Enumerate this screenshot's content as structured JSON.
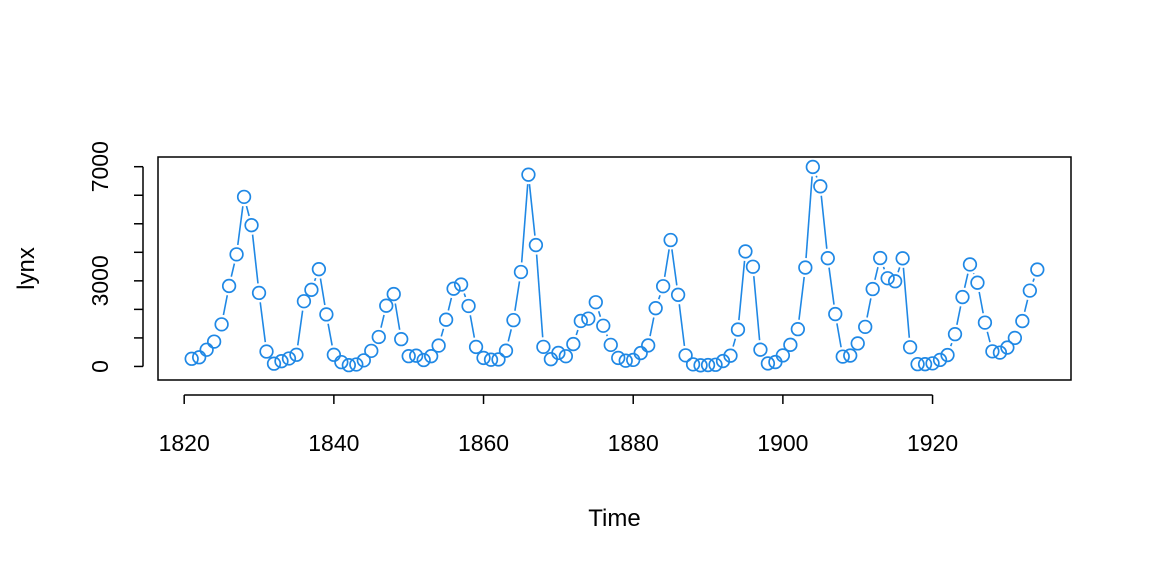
{
  "chart_data": {
    "type": "line",
    "style": "points-and-line-gaps",
    "title": "",
    "xlabel": "Time",
    "ylabel": "lynx",
    "xlim": [
      1816.5,
      1938.5
    ],
    "ylim": [
      -475,
      7340
    ],
    "x_ticks": [
      1820,
      1840,
      1860,
      1880,
      1900,
      1920
    ],
    "y_ticks": [
      0,
      1000,
      2000,
      3000,
      4000,
      5000,
      6000,
      7000
    ],
    "y_tick_labels": [
      "0",
      "",
      "",
      "3000",
      "",
      "",
      "",
      "7000"
    ],
    "x_tick_labels": [
      "1820",
      "1840",
      "1860",
      "1880",
      "1900",
      "1920"
    ],
    "grid": false,
    "series": [
      {
        "name": "lynx",
        "color": "#1f88e5",
        "x": [
          1821,
          1822,
          1823,
          1824,
          1825,
          1826,
          1827,
          1828,
          1829,
          1830,
          1831,
          1832,
          1833,
          1834,
          1835,
          1836,
          1837,
          1838,
          1839,
          1840,
          1841,
          1842,
          1843,
          1844,
          1845,
          1846,
          1847,
          1848,
          1849,
          1850,
          1851,
          1852,
          1853,
          1854,
          1855,
          1856,
          1857,
          1858,
          1859,
          1860,
          1861,
          1862,
          1863,
          1864,
          1865,
          1866,
          1867,
          1868,
          1869,
          1870,
          1871,
          1872,
          1873,
          1874,
          1875,
          1876,
          1877,
          1878,
          1879,
          1880,
          1881,
          1882,
          1883,
          1884,
          1885,
          1886,
          1887,
          1888,
          1889,
          1890,
          1891,
          1892,
          1893,
          1894,
          1895,
          1896,
          1897,
          1898,
          1899,
          1900,
          1901,
          1902,
          1903,
          1904,
          1905,
          1906,
          1907,
          1908,
          1909,
          1910,
          1911,
          1912,
          1913,
          1914,
          1915,
          1916,
          1917,
          1918,
          1919,
          1920,
          1921,
          1922,
          1923,
          1924,
          1925,
          1926,
          1927,
          1928,
          1929,
          1930,
          1931,
          1932,
          1933,
          1934
        ],
        "values": [
          269,
          321,
          585,
          871,
          1475,
          2821,
          3928,
          5943,
          4950,
          2577,
          523,
          98,
          184,
          279,
          409,
          2285,
          2685,
          3409,
          1824,
          409,
          151,
          45,
          68,
          213,
          546,
          1033,
          2129,
          2536,
          957,
          361,
          377,
          225,
          360,
          731,
          1638,
          2725,
          2871,
          2119,
          684,
          299,
          236,
          245,
          552,
          1623,
          3311,
          6721,
          4254,
          687,
          255,
          473,
          358,
          784,
          1594,
          1676,
          2251,
          1426,
          756,
          299,
          201,
          229,
          469,
          736,
          2042,
          2811,
          4431,
          2511,
          389,
          73,
          39,
          49,
          59,
          188,
          377,
          1292,
          4031,
          3495,
          587,
          105,
          153,
          387,
          758,
          1307,
          3465,
          6991,
          6313,
          3794,
          1836,
          345,
          382,
          808,
          1388,
          2713,
          3800,
          3091,
          2985,
          3790,
          674,
          81,
          80,
          108,
          229,
          399,
          1132,
          2432,
          3574,
          2935,
          1537,
          529,
          485,
          662,
          1000,
          1590,
          2657,
          3396
        ]
      }
    ]
  }
}
